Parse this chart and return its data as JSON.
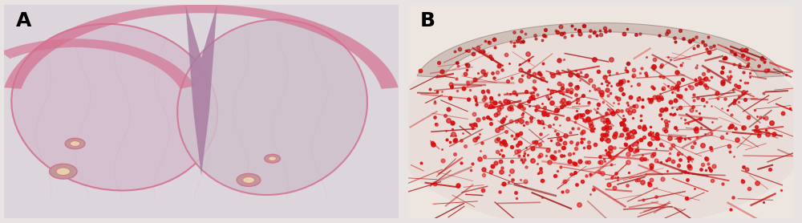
{
  "figsize": [
    10.0,
    2.78
  ],
  "dpi": 100,
  "background_color": "#e8e4e4",
  "panel_A_label": "A",
  "panel_B_label": "B",
  "label_fontsize": 18,
  "label_fontweight": "bold",
  "label_color": "#000000",
  "tissue_edge": "#d47090",
  "tissue_main": "#d4bece",
  "tissue_right": "#cfc0cc",
  "cleft_color": "#a878a0",
  "cleft_edge": "#906088",
  "follicle_fill": "#c09898",
  "follicle_inner": "#e8d0a8",
  "panel_A_bg": "#ddd5dc",
  "panel_B_bg": "#ede5e0",
  "stroma_color": "#e8ddd8",
  "epi_b_fill": "#c8b8b0",
  "epi_b_edge": "#a89088"
}
